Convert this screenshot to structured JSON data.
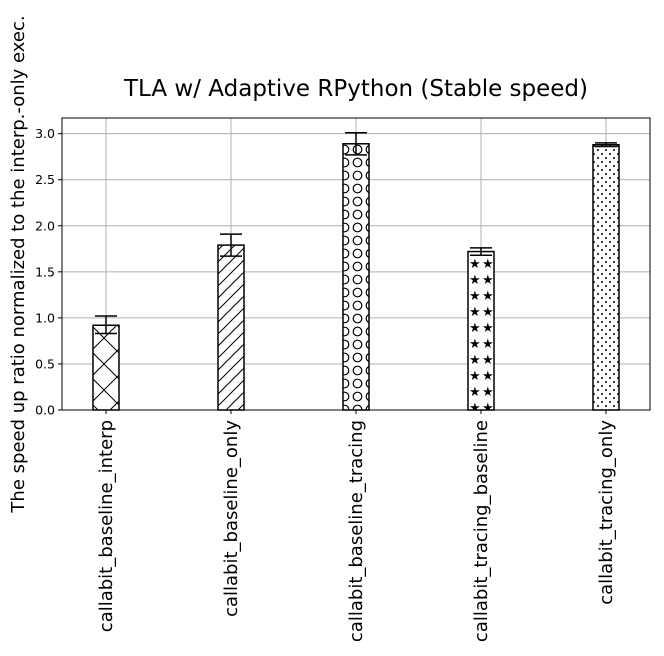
{
  "chart_data": {
    "type": "bar",
    "title": "TLA w/ Adaptive RPython (Stable speed)",
    "xlabel": "",
    "ylabel": "The speed up ratio normalized to the interp.-only exec.",
    "categories": [
      "callabit_baseline_interp",
      "callabit_baseline_only",
      "callabit_baseline_tracing",
      "callabit_tracing_baseline",
      "callabit_tracing_only"
    ],
    "values": [
      0.92,
      1.79,
      2.89,
      1.72,
      2.88
    ],
    "error_low": [
      0.83,
      1.67,
      2.77,
      1.68,
      2.86
    ],
    "error_high": [
      1.02,
      1.91,
      3.01,
      1.76,
      2.9
    ],
    "hatches": [
      "x",
      "/",
      "o",
      "*",
      "."
    ],
    "bar_color": "#ffffff",
    "edge_color": "#000000",
    "ylim": [
      0,
      3.17
    ],
    "yticks": [
      "0.0",
      "0.5",
      "1.0",
      "1.5",
      "2.0",
      "2.5",
      "3.0"
    ],
    "grid": true
  }
}
